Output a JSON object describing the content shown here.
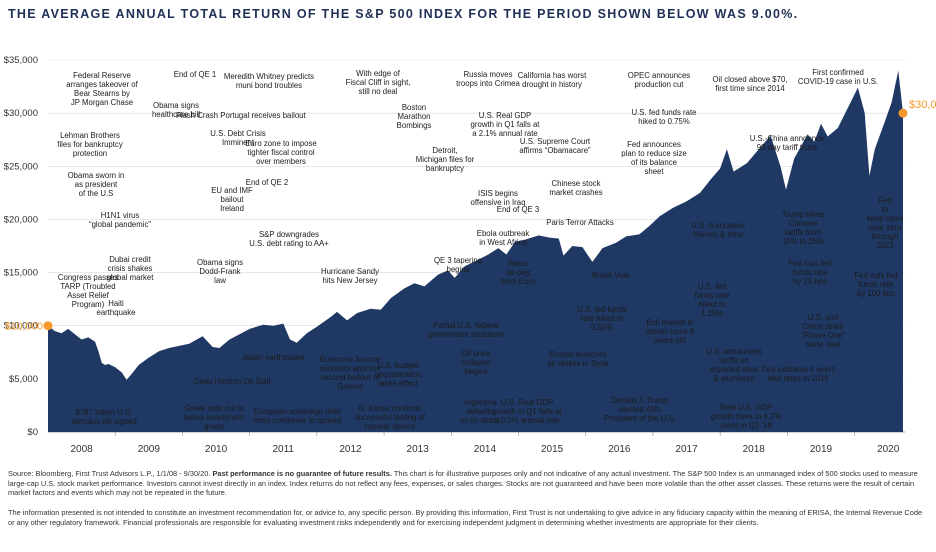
{
  "title": "THE AVERAGE ANNUAL TOTAL RETURN OF THE S&P 500 INDEX FOR THE PERIOD SHOWN BELOW WAS 9.00%.",
  "colors": {
    "area": "#1f3864",
    "accent": "#f39a2b",
    "title": "#1f2f55"
  },
  "chart_data": {
    "type": "area",
    "ylim": [
      0,
      35000
    ],
    "yticks": [
      "$35,000",
      "$30,000",
      "$25,000",
      "$20,000",
      "$15,000",
      "$10,000",
      "$5,000",
      "$0"
    ],
    "ytick_values": [
      35000,
      30000,
      25000,
      20000,
      15000,
      10000,
      5000,
      0
    ],
    "xlim": [
      2008,
      2020.75
    ],
    "xticks": [
      "2008",
      "2009",
      "2010",
      "2011",
      "2012",
      "2013",
      "2014",
      "2015",
      "2016",
      "2017",
      "2018",
      "2019",
      "2020"
    ],
    "start_label": "$10,000",
    "end_label": "$30,000",
    "series": [
      {
        "x": [
          2008.0,
          2008.1,
          2008.2,
          2008.3,
          2008.4,
          2008.5,
          2008.6,
          2008.7,
          2008.75,
          2008.8,
          2008.85,
          2008.9,
          2009.0,
          2009.1,
          2009.17,
          2009.25,
          2009.35,
          2009.5,
          2009.65,
          2009.8,
          2009.95,
          2010.1,
          2010.3,
          2010.45,
          2010.55,
          2010.7,
          2010.85,
          2011.0,
          2011.2,
          2011.35,
          2011.5,
          2011.6,
          2011.7,
          2011.85,
          2012.0,
          2012.2,
          2012.3,
          2012.45,
          2012.6,
          2012.8,
          2012.95,
          2013.1,
          2013.3,
          2013.45,
          2013.6,
          2013.8,
          2013.95,
          2014.05,
          2014.2,
          2014.4,
          2014.55,
          2014.7,
          2014.82,
          2014.95,
          2015.1,
          2015.3,
          2015.45,
          2015.6,
          2015.67,
          2015.8,
          2015.95,
          2016.1,
          2016.25,
          2016.45,
          2016.6,
          2016.8,
          2016.95,
          2017.1,
          2017.3,
          2017.5,
          2017.7,
          2017.85,
          2018.0,
          2018.1,
          2018.2,
          2018.4,
          2018.6,
          2018.75,
          2018.9,
          2018.98,
          2019.1,
          2019.3,
          2019.4,
          2019.5,
          2019.6,
          2019.75,
          2019.9,
          2020.05,
          2020.15,
          2020.22,
          2020.3,
          2020.45,
          2020.55,
          2020.65,
          2020.72
        ],
        "values": [
          10000,
          9500,
          9300,
          9700,
          9200,
          8700,
          8900,
          8500,
          7600,
          6500,
          6300,
          6400,
          6100,
          5600,
          4900,
          5500,
          6300,
          7000,
          7600,
          7900,
          8100,
          8300,
          9000,
          8000,
          7900,
          8700,
          9200,
          9700,
          10100,
          10000,
          10200,
          8700,
          8400,
          9300,
          9900,
          10800,
          11300,
          10500,
          11200,
          11600,
          11500,
          12600,
          13500,
          14000,
          13700,
          14800,
          15200,
          14500,
          15600,
          16200,
          16700,
          17300,
          16700,
          17900,
          18100,
          18500,
          18300,
          18200,
          16600,
          17500,
          17400,
          16000,
          17300,
          17800,
          18400,
          18600,
          19400,
          20300,
          21100,
          21700,
          22500,
          23700,
          24800,
          26600,
          24500,
          25300,
          26800,
          27900,
          24900,
          22800,
          25700,
          28000,
          27300,
          29000,
          27800,
          28600,
          30500,
          32400,
          30000,
          24100,
          26600,
          29200,
          31000,
          34000,
          30000
        ]
      }
    ],
    "annotations": [
      {
        "lines": [
          "Federal Reserve",
          "arranges takeover of",
          "Bear Stearns by",
          "JP Morgan Chase"
        ],
        "x": 2008.2
      },
      {
        "lines": [
          "Lehman Brothers",
          "files for bankruptcy",
          "protection"
        ],
        "x": 2008.7
      },
      {
        "lines": [
          "Obama sworn in",
          "as president",
          "of the U.S"
        ],
        "x": 2009.05
      },
      {
        "lines": [
          "H1N1 virus",
          "“global pandemic”"
        ],
        "x": 2009.3
      },
      {
        "lines": [
          "Congress passes",
          "TARP (Troubled",
          "Asset Relief",
          "Program)"
        ],
        "x": 2008.8
      },
      {
        "lines": [
          "Dubai credit",
          "crisis shakes",
          "global market"
        ],
        "x": 2009.9
      },
      {
        "lines": [
          "Haiti",
          "earthquake"
        ],
        "x": 2010.05
      },
      {
        "lines": [
          "$787 billion U.S.",
          "stimulus bill signed"
        ],
        "x": 2009.15
      },
      {
        "lines": [
          "End of QE 1"
        ],
        "x": 2010.25
      },
      {
        "lines": [
          "Obama signs",
          "healthcare bill"
        ],
        "x": 2010.2
      },
      {
        "lines": [
          "Flash Crash"
        ],
        "x": 2010.4
      },
      {
        "lines": [
          "U.S. Debt Crisis",
          "Imminent"
        ],
        "x": 2010.9
      },
      {
        "lines": [
          "EU and IMF",
          "bailout",
          "Ireland"
        ],
        "x": 2010.9
      },
      {
        "lines": [
          "Obama signs",
          "Dodd-Frank",
          "law"
        ],
        "x": 2010.55
      },
      {
        "lines": [
          "Deep Horizon Oil Spill"
        ],
        "x": 2010.35
      },
      {
        "lines": [
          "Greek debt cut to",
          "below investment",
          "grade"
        ],
        "x": 2010.3
      },
      {
        "lines": [
          "Meredith Whitney predicts",
          "muni bond troubles"
        ],
        "x": 2010.95
      },
      {
        "lines": [
          "Portugal receives bailout"
        ],
        "x": 2011.3
      },
      {
        "lines": [
          "Euro zone to impose",
          "tighter fiscal control",
          "over members"
        ],
        "x": 2011.85
      },
      {
        "lines": [
          "End of QE 2"
        ],
        "x": 2011.5
      },
      {
        "lines": [
          "S&P downgrades",
          "U.S. debt rating to AA+"
        ],
        "x": 2011.6
      },
      {
        "lines": [
          "Japan earthquake"
        ],
        "x": 2011.2
      },
      {
        "lines": [
          "European sovereign debt",
          "crisis continues to spread"
        ],
        "x": 2011.8
      },
      {
        "lines": [
          "Eurozone finance",
          "ministers approve",
          "second bailout of",
          "Greece"
        ],
        "x": 2012.1
      },
      {
        "lines": [
          "Hurricane Sandy",
          "hits New Jersey"
        ],
        "x": 2012.8
      },
      {
        "lines": [
          "With edge of",
          "Fiscal Cliff in sight,",
          "still no deal"
        ],
        "x": 2012.95
      },
      {
        "lines": [
          "Boston",
          "Marathon",
          "Bombings"
        ],
        "x": 2013.3
      },
      {
        "lines": [
          "U.S. budget",
          "sequestration",
          "takes effect"
        ],
        "x": 2013.15
      },
      {
        "lines": [
          "N. Korea confirms",
          "successful testing of",
          "nuclear device"
        ],
        "x": 2013.1
      },
      {
        "lines": [
          "Partial U.S. federal",
          "government shutdown"
        ],
        "x": 2013.75
      },
      {
        "lines": [
          "Detroit,",
          "Michigan files for",
          "bankruptcy"
        ],
        "x": 2013.55
      },
      {
        "lines": [
          "Russia moves",
          "troops into Crimea"
        ],
        "x": 2014.2
      },
      {
        "lines": [
          "U.S. Real GDP",
          "growth in Q1 falls at",
          "a 2.1% annual rate"
        ],
        "x": 2014.3
      },
      {
        "lines": [
          "ISIS begins",
          "offensive in Iraq"
        ],
        "x": 2014.45
      },
      {
        "lines": [
          "Ebola outbreak",
          "in West Africa"
        ],
        "x": 2014.6
      },
      {
        "lines": [
          "QE 3 tapering",
          "begins"
        ],
        "x": 2013.95
      },
      {
        "lines": [
          "Oil price",
          "collapse",
          "begins"
        ],
        "x": 2014.5
      },
      {
        "lines": [
          "Argentina",
          "defaults",
          "on its debts"
        ],
        "x": 2014.6
      },
      {
        "lines": [
          "End of QE 3"
        ],
        "x": 2014.8
      },
      {
        "lines": [
          "Swiss",
          "de-peg",
          "from Euro"
        ],
        "x": 2015.05
      },
      {
        "lines": [
          "U.S. Real GDP",
          "growth in Q1 falls at",
          "a 0.2% annual rate"
        ],
        "x": 2015.2
      },
      {
        "lines": [
          "California has worst",
          "drought in history"
        ],
        "x": 2015.2
      },
      {
        "lines": [
          "U.S. Supreme Court",
          "affirms “Obamacare”"
        ],
        "x": 2015.5
      },
      {
        "lines": [
          "Chinese stock",
          "market crashes"
        ],
        "x": 2015.55
      },
      {
        "lines": [
          "Paris Terror Attacks"
        ],
        "x": 2015.85
      },
      {
        "lines": [
          "Russia launches",
          "air strikes in Syria"
        ],
        "x": 2015.75
      },
      {
        "lines": [
          "U.S. fed funds",
          "rate hiked to",
          "0.50%"
        ],
        "x": 2015.95
      },
      {
        "lines": [
          "Brexit Vote"
        ],
        "x": 2016.5
      },
      {
        "lines": [
          "OPEC announces",
          "production cut"
        ],
        "x": 2016.9
      },
      {
        "lines": [
          "U.S. fed funds rate",
          "hiked to 0.75%"
        ],
        "x": 2016.95
      },
      {
        "lines": [
          "Donald J. Trump",
          "elected 45th",
          "President of the U.S."
        ],
        "x": 2016.85
      },
      {
        "lines": [
          "Bull market in",
          "stocks turns 8",
          "years old"
        ],
        "x": 2017.2
      },
      {
        "lines": [
          "U.S. hurricanes",
          "Harvey & Irma"
        ],
        "x": 2017.7
      },
      {
        "lines": [
          "U.S. fed",
          "funds rate",
          "hiked to",
          "1.25%"
        ],
        "x": 2017.45
      },
      {
        "lines": [
          "Fed announces",
          "plan to reduce size",
          "of its balance",
          "sheet"
        ],
        "x": 2017.7
      },
      {
        "lines": [
          "Real U.S. GDP",
          "growth rises to 4.2%",
          "(ann) in Q2 ’18"
        ],
        "x": 2018.5
      },
      {
        "lines": [
          "Oil closed above $70,",
          "first time since 2014"
        ],
        "x": 2018.35
      },
      {
        "lines": [
          "U.S. announces",
          "tariffs on",
          "imported steel",
          "& aluminum"
        ],
        "x": 2018.2
      },
      {
        "lines": [
          "U.S.-China announce",
          "90-day tariff truce"
        ],
        "x": 2018.9
      },
      {
        "lines": [
          "Trump hikes",
          "Chinese",
          "tariffs from",
          "10% to 25%"
        ],
        "x": 2019.35
      },
      {
        "lines": [
          "Fed cuts fed",
          "funds rate",
          "by 25 bps"
        ],
        "x": 2019.55
      },
      {
        "lines": [
          "Fed indicates it won’t",
          "hike rates in 2019"
        ],
        "x": 2019.05
      },
      {
        "lines": [
          "U.S. and",
          "China strike",
          "“Phase One”",
          "trade deal"
        ],
        "x": 2019.95
      },
      {
        "lines": [
          "First confirmed",
          "COVID-19 case in U.S."
        ],
        "x": 2020.05
      },
      {
        "lines": [
          "Fed",
          "to",
          "keep rates",
          "near zero",
          "through",
          "2023"
        ],
        "x": 2020.6
      },
      {
        "lines": [
          "Fed cuts fed",
          "funds rate",
          "by 100 bps"
        ],
        "x": 2020.2
      }
    ]
  },
  "footnotes": {
    "source_prefix": "Source: Bloomberg, First Trust Advisors L.P., 1/1/08 - 9/30/20. ",
    "source_bold": "Past performance is no guarantee of future results.",
    "source_rest": " This chart is for illustrative purposes only and not indicative of any actual investment. The S&P 500 Index is an unmanaged index of 500 stocks used to measure large-cap U.S. stock market performance. Investors cannot invest directly in an index. Index returns do not reflect any fees, expenses, or sales charges. Stocks are not guaranteed and have been more volatile than the other asset classes. These returns were the result of certain market factors and events which may not be repeated in the future.",
    "info": "The information presented is not intended to constitute an investment recommendation for, or advice to, any specific person. By providing this information, First Trust is not undertaking to give advice in any fiduciary capacity within the meaning of ERISA, the Internal Revenue Code or any other regulatory framework. Financial professionals are responsible for evaluating investment risks independently and for exercising independent judgment in determining whether investments are appropriate for their clients."
  }
}
